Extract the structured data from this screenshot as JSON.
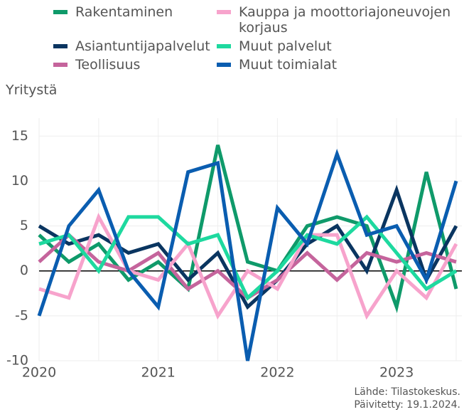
{
  "chart_data": {
    "type": "line",
    "y_label": "Yritystä",
    "categories": [
      "2020",
      null,
      null,
      null,
      "2021",
      null,
      null,
      null,
      "2022",
      null,
      null,
      null,
      "2023",
      null,
      null
    ],
    "series": [
      {
        "name": "Rakentaminen",
        "color": "#0f9a6a",
        "values": [
          4,
          1,
          3,
          -1,
          1,
          -2,
          14,
          1,
          0,
          5,
          6,
          5,
          -4,
          11,
          -2
        ]
      },
      {
        "name": "Asiantuntijapalvelut",
        "color": "#0a3560",
        "values": [
          5,
          3,
          4,
          2,
          3,
          -1,
          2,
          -4,
          -1,
          3,
          5,
          0,
          9,
          -1,
          5
        ]
      },
      {
        "name": "Teollisuus",
        "color": "#c5649c",
        "values": [
          1,
          4,
          1,
          0,
          2,
          -2,
          0,
          -3,
          -1,
          2,
          -1,
          2,
          1,
          2,
          1
        ]
      },
      {
        "name": "Kauppa ja moottoriajoneuvojen korjaus",
        "color": "#f7a3cc",
        "values": [
          -2,
          -3,
          6,
          0,
          -1,
          3,
          -5,
          0,
          -2,
          4,
          4,
          -5,
          0,
          -3,
          3
        ]
      },
      {
        "name": "Muut palvelut",
        "color": "#1ed99f",
        "values": [
          3,
          4,
          0,
          6,
          6,
          3,
          4,
          -3,
          0,
          4,
          3,
          6,
          2,
          -2,
          0
        ]
      },
      {
        "name": "Muut toimialat",
        "color": "#0a5db0",
        "values": [
          -5,
          5,
          9,
          0,
          -4,
          11,
          12,
          -10,
          7,
          3,
          13,
          4,
          5,
          -1,
          10
        ]
      }
    ],
    "ylim": [
      -10,
      17
    ],
    "yticks": [
      -10,
      -5,
      0,
      5,
      10,
      15
    ],
    "grid": true,
    "source": [
      "Lähde: Tilastokeskus.",
      "Päivitetty: 19.1.2024."
    ]
  }
}
